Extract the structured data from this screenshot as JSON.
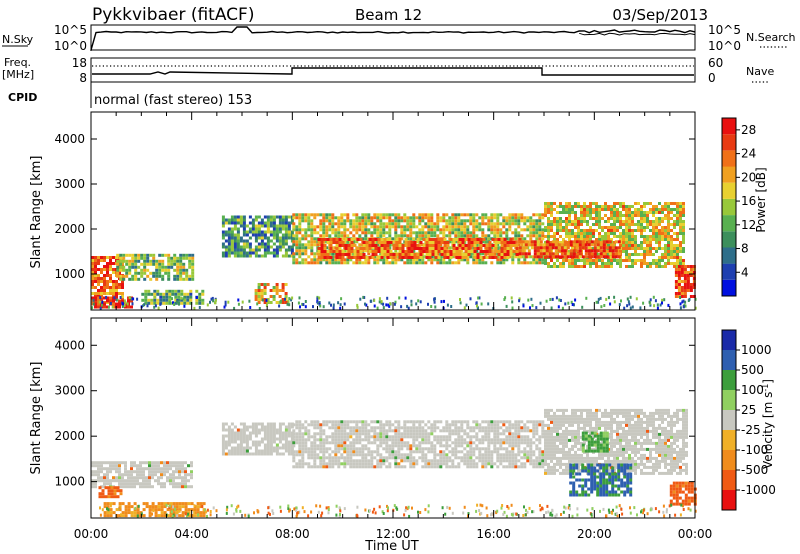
{
  "header": {
    "station": "Pykkvibaer (fitACF)",
    "beam": "Beam 12",
    "date": "03/Sep/2013"
  },
  "nsky_panel": {
    "left_label": "N.Sky",
    "left_ticks": [
      "10^5",
      "10^0"
    ],
    "right_ticks": [
      "10^5",
      "10^0"
    ],
    "right_label": "N.Search"
  },
  "freq_panel": {
    "left_label_1": "Freq.",
    "left_label_2": "[MHz]",
    "left_ticks": [
      "18",
      "8"
    ],
    "right_ticks": [
      "60",
      "0"
    ],
    "right_label": "Nave",
    "cpid_label": "CPID",
    "cpid_value": "normal (fast stereo) 153"
  },
  "colors": {
    "power": [
      "#0010e0",
      "#1e3fb0",
      "#2e6e8a",
      "#3c8f5c",
      "#58b050",
      "#98c83a",
      "#e8d030",
      "#f0a020",
      "#f07018",
      "#e83a12",
      "#e81010"
    ],
    "velocity": [
      "#e81010",
      "#f05a14",
      "#f08c1c",
      "#f0b028",
      "#c8c8c0",
      "#90d060",
      "#3c9e3c",
      "#2e5fb0",
      "#1a2aa8"
    ],
    "velocity_gray": "#c8c8c0"
  },
  "chart_data": [
    {
      "type": "heatmap",
      "name": "power-rti",
      "ylabel": "Slant Range [km]",
      "ylim": [
        200,
        4600
      ],
      "yticks": [
        "1000",
        "2000",
        "3000",
        "4000"
      ],
      "xlim_hours": [
        0,
        24
      ],
      "xtick_labels": [
        "00:00",
        "04:00",
        "08:00",
        "12:00",
        "16:00",
        "20:00",
        "00:00"
      ],
      "colorbar": {
        "label": "Power [dB]",
        "ticks": [
          "4",
          "8",
          "12",
          "16",
          "20",
          "24",
          "28"
        ],
        "range": [
          0,
          30
        ]
      },
      "regions": [
        {
          "t0": 0.0,
          "t1": 1.3,
          "r0": 350,
          "r1": 1400,
          "power": 24
        },
        {
          "t0": 0.0,
          "t1": 1.6,
          "r0": 250,
          "r1": 500,
          "power": 29
        },
        {
          "t0": 1.0,
          "t1": 4.0,
          "r0": 900,
          "r1": 1450,
          "power": 14
        },
        {
          "t0": 2.0,
          "t1": 4.5,
          "r0": 350,
          "r1": 650,
          "power": 12
        },
        {
          "t0": 6.5,
          "t1": 7.8,
          "r0": 350,
          "r1": 800,
          "power": 20
        },
        {
          "t0": 5.2,
          "t1": 8.0,
          "r0": 1400,
          "r1": 2300,
          "power": 10
        },
        {
          "t0": 8.0,
          "t1": 18.0,
          "r0": 1250,
          "r1": 2350,
          "power": 17
        },
        {
          "t0": 9.0,
          "t1": 17.0,
          "r0": 1350,
          "r1": 1800,
          "power": 24
        },
        {
          "t0": 18.0,
          "t1": 23.5,
          "r0": 1150,
          "r1": 2600,
          "power": 18
        },
        {
          "t0": 17.0,
          "t1": 21.0,
          "r0": 1350,
          "r1": 1750,
          "power": 25
        },
        {
          "t0": 23.2,
          "t1": 24.0,
          "r0": 500,
          "r1": 1200,
          "power": 26
        }
      ]
    },
    {
      "type": "heatmap",
      "name": "velocity-rti",
      "ylabel": "Slant Range [km]",
      "ylim": [
        200,
        4600
      ],
      "yticks": [
        "1000",
        "2000",
        "3000",
        "4000"
      ],
      "xlim_hours": [
        0,
        24
      ],
      "xtick_labels": [
        "00:00",
        "04:00",
        "08:00",
        "12:00",
        "16:00",
        "20:00",
        "00:00"
      ],
      "xlabel": "Time UT",
      "colorbar": {
        "label": "Velocity [m s-1]",
        "ticks": [
          "1000",
          "500",
          "100",
          "25",
          "-25",
          "-100",
          "-500",
          "-1000"
        ]
      },
      "regions": [
        {
          "t0": 0.0,
          "t1": 4.0,
          "r0": 900,
          "r1": 1450,
          "velocity": 0
        },
        {
          "t0": 0.3,
          "t1": 1.2,
          "r0": 700,
          "r1": 900,
          "velocity": -150
        },
        {
          "t0": 0.5,
          "t1": 4.5,
          "r0": 250,
          "r1": 550,
          "velocity": -60
        },
        {
          "t0": 5.2,
          "t1": 8.0,
          "r0": 1600,
          "r1": 2300,
          "velocity": 0
        },
        {
          "t0": 8.0,
          "t1": 18.0,
          "r0": 1300,
          "r1": 2350,
          "velocity": 0
        },
        {
          "t0": 18.0,
          "t1": 23.7,
          "r0": 1150,
          "r1": 2600,
          "velocity": 0
        },
        {
          "t0": 19.0,
          "t1": 21.5,
          "r0": 700,
          "r1": 1400,
          "velocity": 600
        },
        {
          "t0": 19.5,
          "t1": 20.5,
          "r0": 1700,
          "r1": 2100,
          "velocity": 150
        },
        {
          "t0": 23.0,
          "t1": 24.0,
          "r0": 500,
          "r1": 1000,
          "velocity": -200
        }
      ]
    }
  ]
}
